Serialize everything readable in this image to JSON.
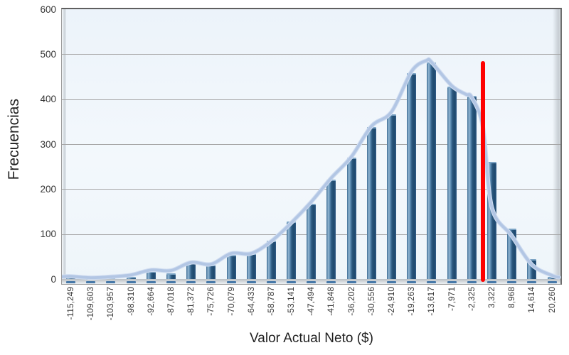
{
  "chart_data": {
    "type": "bar",
    "subtype": "histogram-with-fitted-curve",
    "title": "",
    "xlabel": "Valor Actual Neto ($)",
    "ylabel": "Frecuencias",
    "ylim": [
      0,
      600
    ],
    "yticks": [
      0,
      100,
      200,
      300,
      400,
      500,
      600
    ],
    "grid": true,
    "legend": "none",
    "categories": [
      "-115,249",
      "-109,603",
      "-103,957",
      "-98,310",
      "-92,664",
      "-87,018",
      "-81,372",
      "-75,726",
      "-70,079",
      "-64,433",
      "-58,787",
      "-53,141",
      "-47,494",
      "-41,848",
      "-36,202",
      "-30,556",
      "-24,910",
      "-19,263",
      "-13,617",
      "-7,971",
      "-2,325",
      "3,322",
      "8,968",
      "14,614",
      "20,260"
    ],
    "values": [
      5,
      2,
      3,
      4,
      18,
      12,
      36,
      31,
      54,
      57,
      86,
      128,
      168,
      221,
      270,
      338,
      367,
      458,
      482,
      428,
      408,
      261,
      112,
      45,
      5
    ],
    "curve_overlay": {
      "name": "fitted-distribution-curve",
      "points": [
        [
          -0.45,
          5
        ],
        [
          0,
          6
        ],
        [
          1,
          3
        ],
        [
          2,
          5
        ],
        [
          3,
          9
        ],
        [
          4,
          20
        ],
        [
          5,
          19
        ],
        [
          6,
          37
        ],
        [
          7,
          33
        ],
        [
          8,
          57
        ],
        [
          9,
          57
        ],
        [
          10,
          84
        ],
        [
          11,
          125
        ],
        [
          12,
          172
        ],
        [
          13,
          225
        ],
        [
          14,
          272
        ],
        [
          15,
          340
        ],
        [
          16,
          372
        ],
        [
          17,
          462
        ],
        [
          17.75,
          486
        ],
        [
          18,
          482
        ],
        [
          19,
          430
        ],
        [
          19.7,
          411
        ],
        [
          20,
          404
        ],
        [
          20.56,
          338
        ],
        [
          21,
          160
        ],
        [
          22,
          96
        ],
        [
          23,
          32
        ],
        [
          24,
          8
        ],
        [
          24.35,
          4
        ]
      ]
    },
    "marker_line": {
      "name": "threshold-marker",
      "index_position": 20.56,
      "top_value": 485,
      "bottom_value": 0,
      "color": "#fe0101"
    },
    "colors": {
      "bar_gradient": [
        "#416e93",
        "#5d89ad",
        "#94b7d2",
        "#5585ad",
        "#2b587e",
        "#1e4a6f",
        "#27517a",
        "#35608a"
      ],
      "bar_base_tick": "#4678a8",
      "curve_outer": "#cfdcf0",
      "curve_inner": "#b2c6e4",
      "gridline": "#a6a6a6",
      "plot_background": "#eef5fa",
      "axis_text": "#353535"
    }
  }
}
